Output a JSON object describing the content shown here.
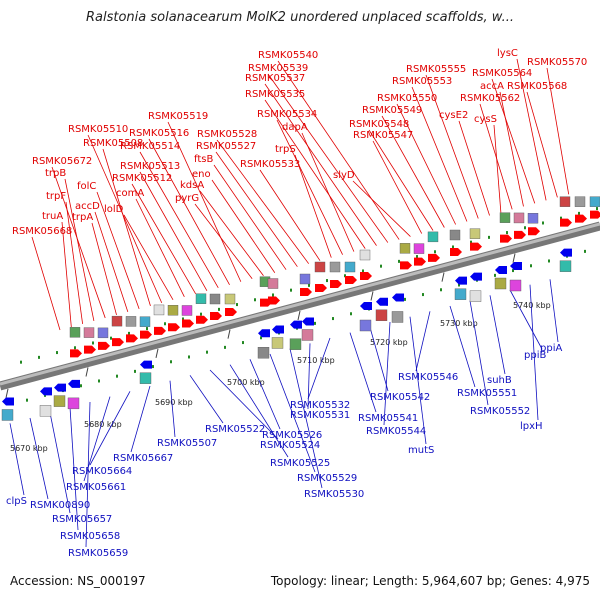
{
  "title": "Ralstonia solanacearum MolK2 unordered unplaced scaffolds, w...",
  "footer": {
    "accession": "Accession: NS_000197",
    "summary": "Topology: linear; Length: 5,964,607 bp; Genes: 4,975"
  },
  "colors": {
    "forward_gene": "#ff0000",
    "reverse_gene": "#0000ee",
    "forward_label": "#e00000",
    "reverse_label": "#1010c0",
    "track": "#999999",
    "tick": "#228822"
  },
  "ticks": [
    "5670 kbp",
    "5680 kbp",
    "5690 kbp",
    "5700 kbp",
    "5710 kbp",
    "5720 kbp",
    "5730 kbp",
    "5740 kbp"
  ],
  "forward_labels": [
    "RSMK05668",
    "truA",
    "trpF",
    "trpB",
    "RSMK05672",
    "trpA",
    "accD",
    "folC",
    "RSMK05508",
    "RSMK05510",
    "lolD",
    "comA",
    "RSMK05512",
    "RSMK05513",
    "RSMK05514",
    "RSMK05516",
    "RSMK05519",
    "pyrG",
    "kdsA",
    "eno",
    "ftsB",
    "RSMK05527",
    "RSMK05528",
    "RSMK05533",
    "trpS",
    "RSMK05534",
    "dapA",
    "RSMK05535",
    "RSMK05537",
    "RSMK05539",
    "RSMK05540",
    "slyD",
    "RSMK05547",
    "RSMK05548",
    "RSMK05549",
    "RSMK05550",
    "RSMK05553",
    "RSMK05555",
    "cysE2",
    "cysS",
    "RSMK05562",
    "accA",
    "RSMK05564",
    "lysC",
    "RSMK05568",
    "RSMK05570"
  ],
  "reverse_labels": [
    "clpS",
    "RSMK00890",
    "RSMK05657",
    "RSMK05658",
    "RSMK05659",
    "RSMK05661",
    "RSMK05664",
    "RSMK05667",
    "RSMK05507",
    "RSMK05522",
    "RSMK05524",
    "RSMK05525",
    "RSMK05526",
    "RSMK05529",
    "RSMK05530",
    "RSMK05531",
    "RSMK05532",
    "RSMK05541",
    "RSMK05542",
    "RSMK05544",
    "mutS",
    "RSMK05546",
    "RSMK05551",
    "RSMK05552",
    "suhB",
    "ppiB",
    "lpxH",
    "ppiA"
  ]
}
